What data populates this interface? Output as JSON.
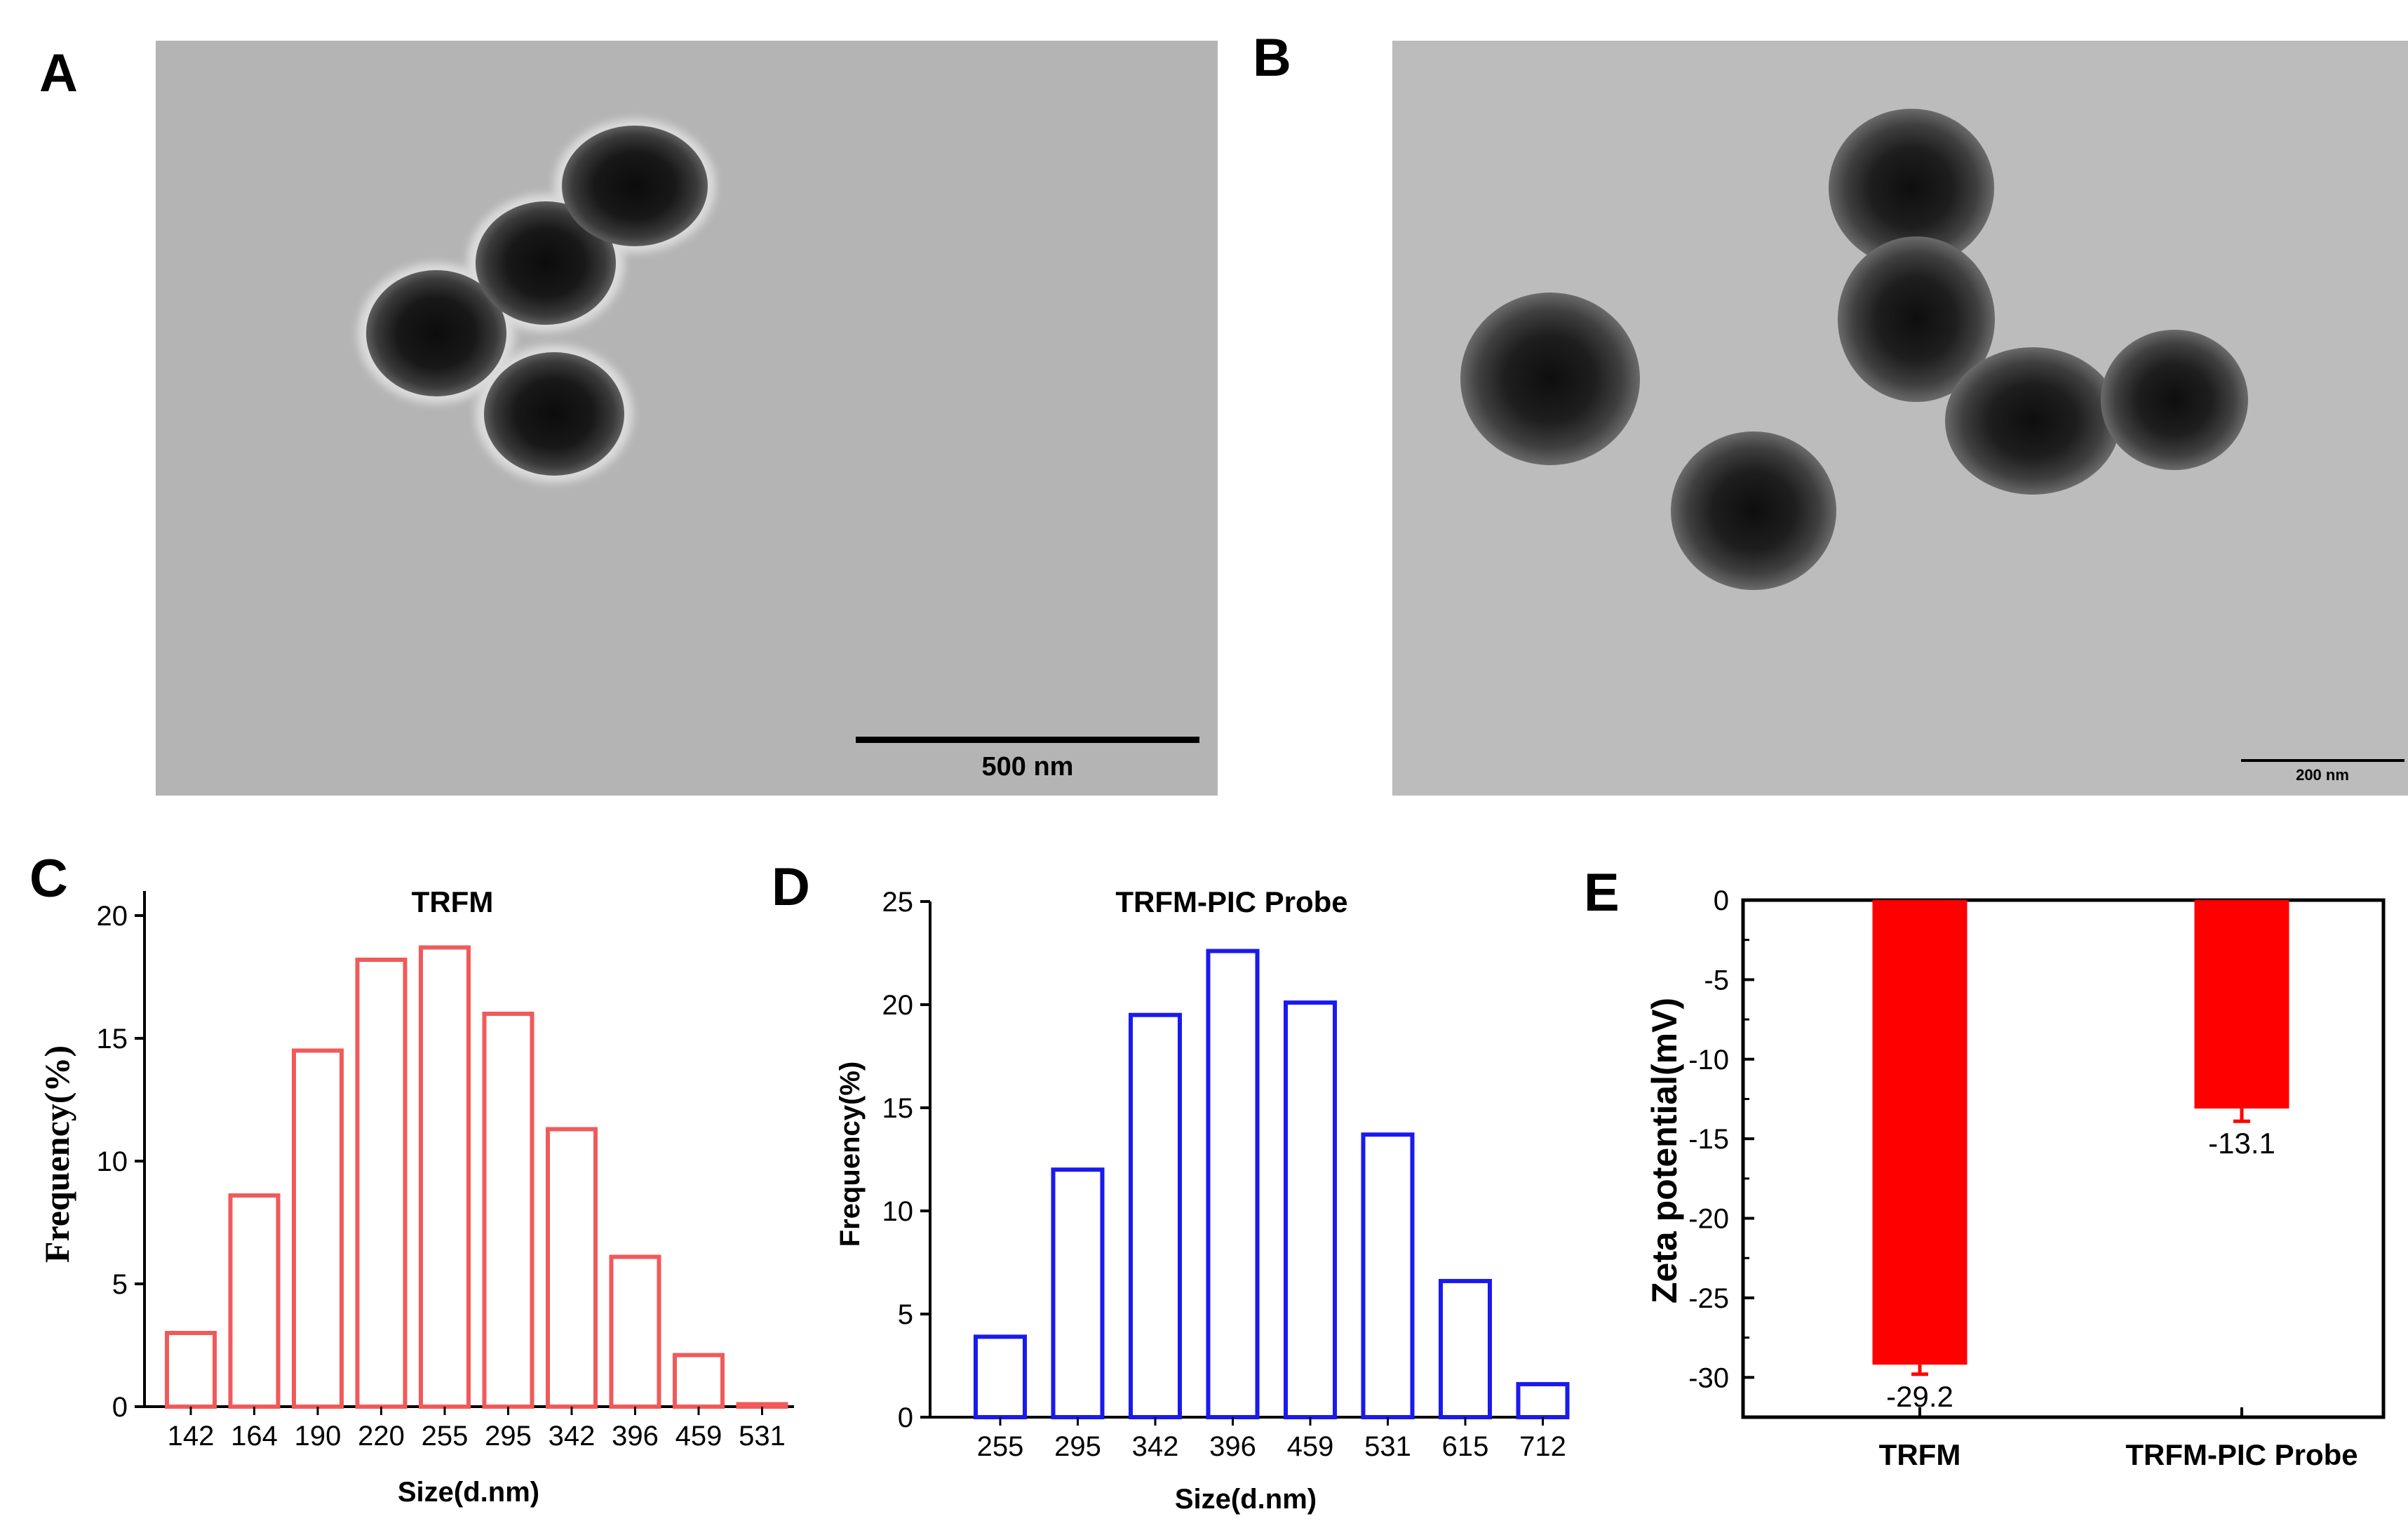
{
  "panels": {
    "A": {
      "label": "A",
      "scale_bar": "500 nm"
    },
    "B": {
      "label": "B",
      "scale_bar": "200 nm"
    },
    "C": {
      "label": "C"
    },
    "D": {
      "label": "D"
    },
    "E": {
      "label": "E"
    }
  },
  "colors": {
    "C": "#f05a5a",
    "D": "#1a1aee",
    "E": "#ff0000"
  },
  "chart_data": [
    {
      "id": "C",
      "type": "bar",
      "title": "TRFM",
      "xlabel": "Size(d.nm)",
      "ylabel": "Frequency(%)",
      "categories": [
        "142",
        "164",
        "190",
        "220",
        "255",
        "295",
        "342",
        "396",
        "459",
        "531"
      ],
      "values": [
        3.0,
        8.6,
        14.5,
        18.2,
        18.7,
        16.0,
        11.3,
        6.1,
        2.1,
        0.1
      ],
      "ylim": [
        0,
        21
      ],
      "yticks": [
        0,
        5,
        10,
        15,
        20
      ],
      "style": "outline"
    },
    {
      "id": "D",
      "type": "bar",
      "title": "TRFM-PIC Probe",
      "xlabel": "Size(d.nm)",
      "ylabel": "Frequency(%)",
      "categories": [
        "255",
        "295",
        "342",
        "396",
        "459",
        "531",
        "615",
        "712"
      ],
      "values": [
        3.9,
        12.0,
        19.5,
        22.6,
        20.1,
        13.7,
        6.6,
        1.6
      ],
      "ylim": [
        0,
        25
      ],
      "yticks": [
        0,
        5,
        10,
        15,
        20,
        25
      ],
      "style": "outline"
    },
    {
      "id": "E",
      "type": "bar",
      "title": "",
      "xlabel": "",
      "ylabel": "Zeta potential(mV)",
      "categories": [
        "TRFM",
        "TRFM-PIC Probe"
      ],
      "values": [
        -29.2,
        -13.1
      ],
      "errors": [
        0.6,
        0.8
      ],
      "data_labels": [
        "-29.2",
        "-13.1"
      ],
      "ylim": [
        -32.5,
        0
      ],
      "yticks": [
        0,
        -5,
        -10,
        -15,
        -20,
        -25,
        -30
      ],
      "style": "filled"
    }
  ]
}
